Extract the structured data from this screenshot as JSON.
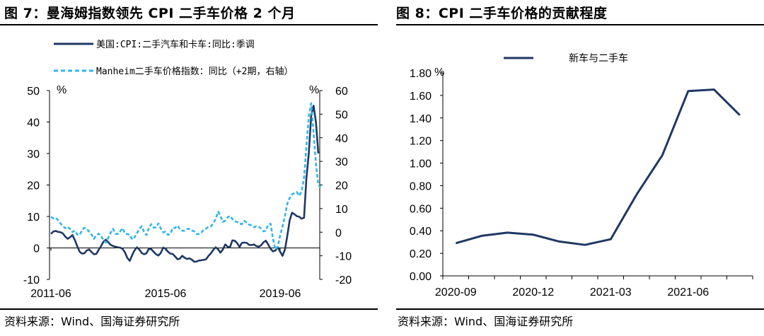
{
  "left": {
    "title": "图 7：曼海姆指数领先 CPI 二手车价格 2 个月",
    "source": "资料来源：Wind、国海证券研究所",
    "colors": {
      "cpi": "#1f3864",
      "manheim": "#33b5e8"
    },
    "chart_data": {
      "type": "line",
      "x_tick_labels": [
        "2011-06",
        "2015-06",
        "2019-06"
      ],
      "left_axis": {
        "unit": "%",
        "ylim": [
          -10,
          50
        ],
        "ticks": [
          "50",
          "40",
          "30",
          "20",
          "10",
          "0",
          "-10"
        ]
      },
      "right_axis": {
        "unit": "%",
        "ylim": [
          -20,
          60
        ],
        "ticks": [
          "60",
          "50",
          "40",
          "30",
          "20",
          "10",
          "0",
          "-10",
          "-20"
        ]
      },
      "series": [
        {
          "name": "美国:CPI:二手汽车和卡车:同比:季调",
          "axis": "left",
          "style": "solid",
          "values": [
            4.5,
            5.2,
            5.4,
            5.1,
            5.0,
            4.6,
            3.6,
            2.9,
            3.4,
            4.1,
            2.5,
            0.6,
            -1.2,
            -1.8,
            -1.7,
            -0.8,
            -0.5,
            -1.3,
            -2.0,
            -1.9,
            -0.6,
            0.6,
            2.0,
            2.6,
            1.8,
            1.0,
            0.6,
            0.4,
            0.2,
            0.1,
            -0.3,
            -1.4,
            -3.2,
            -4.1,
            -2.3,
            -0.8,
            0.2,
            -0.5,
            -1.6,
            -2.0,
            -1.7,
            -0.3,
            -0.4,
            -1.2,
            -2.0,
            -2.4,
            -1.6,
            0.1,
            -0.2,
            -1.2,
            -1.8,
            -1.9,
            -2.7,
            -3.6,
            -3.4,
            -2.5,
            -3.1,
            -3.5,
            -3.3,
            -3.7,
            -4.4,
            -4.3,
            -4.0,
            -3.9,
            -3.8,
            -3.6,
            -2.5,
            -1.7,
            -0.6,
            0.2,
            -0.4,
            -1.5,
            -0.5,
            1.1,
            0.4,
            0.2,
            2.4,
            2.3,
            1.5,
            0.3,
            1.6,
            1.7,
            1.6,
            1.0,
            0.9,
            1.1,
            0.6,
            0.4,
            0.8,
            1.8,
            2.3,
            1.1,
            -0.3,
            -1.1,
            -0.8,
            0.3,
            -1.2,
            -2.5,
            -0.5,
            3.8,
            8.8,
            11.2,
            10.7,
            10.1,
            9.9,
            9.3,
            9.6,
            22.0,
            30.0,
            42.0,
            45.2,
            40.0,
            30.0
          ]
        },
        {
          "name": "Manheim二手车价格指数：同比（+2期，右轴）",
          "axis": "right",
          "style": "dashed",
          "values": [
            6.5,
            5.9,
            6.1,
            5.1,
            3.7,
            2.6,
            1.7,
            2.3,
            1.4,
            0.1,
            0.6,
            -0.9,
            -1.2,
            0.8,
            1.9,
            1.5,
            0.2,
            -1.0,
            -2.8,
            -1.3,
            -0.6,
            -1.6,
            -3.4,
            -4.4,
            -2.4,
            -0.2,
            1.4,
            -0.7,
            -0.7,
            0.4,
            1.7,
            -0.5,
            -0.8,
            -1.1,
            -3.1,
            -2.2,
            -0.6,
            1.4,
            2.5,
            0.1,
            -1.2,
            1.8,
            3.4,
            2.0,
            2.0,
            3.7,
            1.6,
            0.0,
            0.2,
            -1.1,
            -0.7,
            1.8,
            1.8,
            2.8,
            1.3,
            0.6,
            0.6,
            1.3,
            1.4,
            0.7,
            0.4,
            -0.8,
            -0.7,
            -0.2,
            1.1,
            1.5,
            2.3,
            2.5,
            3.6,
            5.7,
            8.7,
            7.0,
            4.4,
            4.9,
            6.3,
            6.9,
            5.6,
            4.7,
            4.3,
            3.6,
            3.4,
            4.8,
            4.0,
            3.2,
            2.9,
            2.1,
            2.5,
            2.3,
            1.6,
            0.3,
            0.7,
            3.2,
            3.6,
            -2.8,
            -7.3,
            -6.1,
            -1.4,
            2.5,
            6.8,
            12.0,
            14.5,
            16.0,
            16.6,
            17.0,
            15.4,
            17.5,
            23.0,
            36.0,
            49.0,
            54.6,
            42.0,
            29.0,
            20.0,
            19.0
          ]
        }
      ]
    }
  },
  "right": {
    "title": "图 8：CPI 二手车价格的贡献程度",
    "source": "资料来源：Wind、国海证券研究所",
    "colors": {
      "line": "#1f3864"
    },
    "chart_data": {
      "type": "line",
      "unit": "%",
      "ylim": [
        0,
        1.8
      ],
      "y_ticks": [
        "1.80",
        "1.60",
        "1.40",
        "1.20",
        "1.00",
        "0.80",
        "0.60",
        "0.40",
        "0.20",
        "0.00"
      ],
      "x_tick_labels": [
        "2020-09",
        "2020-12",
        "2021-03",
        "2021-06"
      ],
      "categories": [
        "2020-09",
        "2020-10",
        "2020-11",
        "2020-12",
        "2021-01",
        "2021-02",
        "2021-03",
        "2021-04",
        "2021-05",
        "2021-06",
        "2021-07",
        "2021-08"
      ],
      "series": [
        {
          "name": "新车与二手车",
          "values": [
            0.29,
            0.355,
            0.383,
            0.365,
            0.305,
            0.275,
            0.325,
            0.72,
            1.07,
            1.638,
            1.652,
            1.425
          ]
        }
      ]
    }
  }
}
